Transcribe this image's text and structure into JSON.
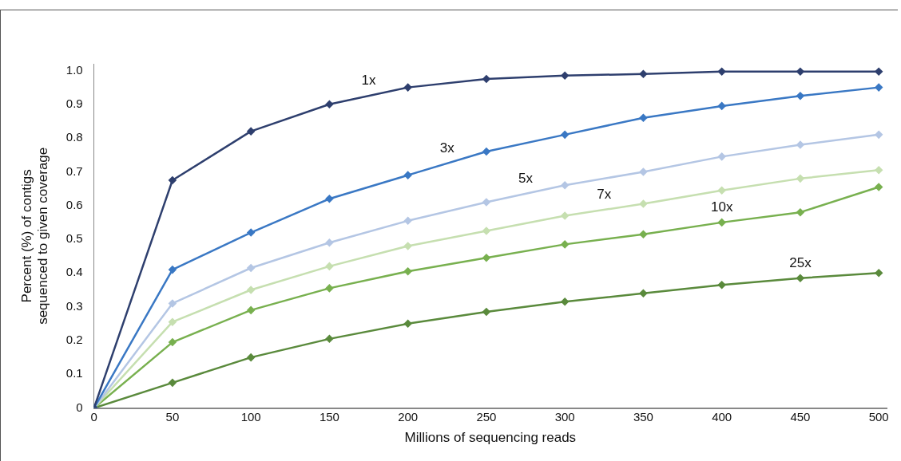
{
  "chart_data": {
    "type": "line",
    "xlabel": "Millions of sequencing reads",
    "ylabel": "Percent (%) of contigs\nsequenced to given coverage",
    "x": [
      0,
      50,
      100,
      150,
      200,
      250,
      300,
      350,
      400,
      450,
      500
    ],
    "xlim": [
      0,
      505
    ],
    "xticks": [
      0,
      50,
      100,
      150,
      200,
      250,
      300,
      350,
      400,
      450,
      500
    ],
    "ylim": [
      0,
      1.02
    ],
    "yticks": [
      0,
      0.1,
      0.2,
      0.3,
      0.4,
      0.5,
      0.6,
      0.7,
      0.8,
      0.9,
      {
        "value": 1,
        "label": "1.0"
      }
    ],
    "grid": false,
    "legend": false,
    "marker": "diamond",
    "line_style": "solid",
    "series": [
      {
        "name": "1x",
        "color": "#2e3f6e",
        "values": [
          0,
          0.675,
          0.82,
          0.9,
          0.95,
          0.975,
          0.985,
          0.99,
          0.997,
          0.997,
          0.997
        ]
      },
      {
        "name": "3x",
        "color": "#3a78c4",
        "values": [
          0,
          0.41,
          0.52,
          0.62,
          0.69,
          0.76,
          0.81,
          0.86,
          0.895,
          0.925,
          0.95
        ]
      },
      {
        "name": "5x",
        "color": "#b4c6e4",
        "values": [
          0,
          0.31,
          0.415,
          0.49,
          0.555,
          0.61,
          0.66,
          0.7,
          0.745,
          0.78,
          0.81
        ]
      },
      {
        "name": "7x",
        "color": "#c6dfb0",
        "values": [
          0,
          0.255,
          0.35,
          0.42,
          0.48,
          0.525,
          0.57,
          0.605,
          0.645,
          0.68,
          0.705
        ]
      },
      {
        "name": "10x",
        "color": "#78b04f",
        "values": [
          0,
          0.195,
          0.29,
          0.355,
          0.405,
          0.445,
          0.485,
          0.515,
          0.55,
          0.58,
          0.655
        ]
      },
      {
        "name": "25x",
        "color": "#5a8a3c",
        "values": [
          0,
          0.075,
          0.15,
          0.205,
          0.25,
          0.285,
          0.315,
          0.34,
          0.365,
          0.385,
          0.4
        ]
      }
    ]
  }
}
